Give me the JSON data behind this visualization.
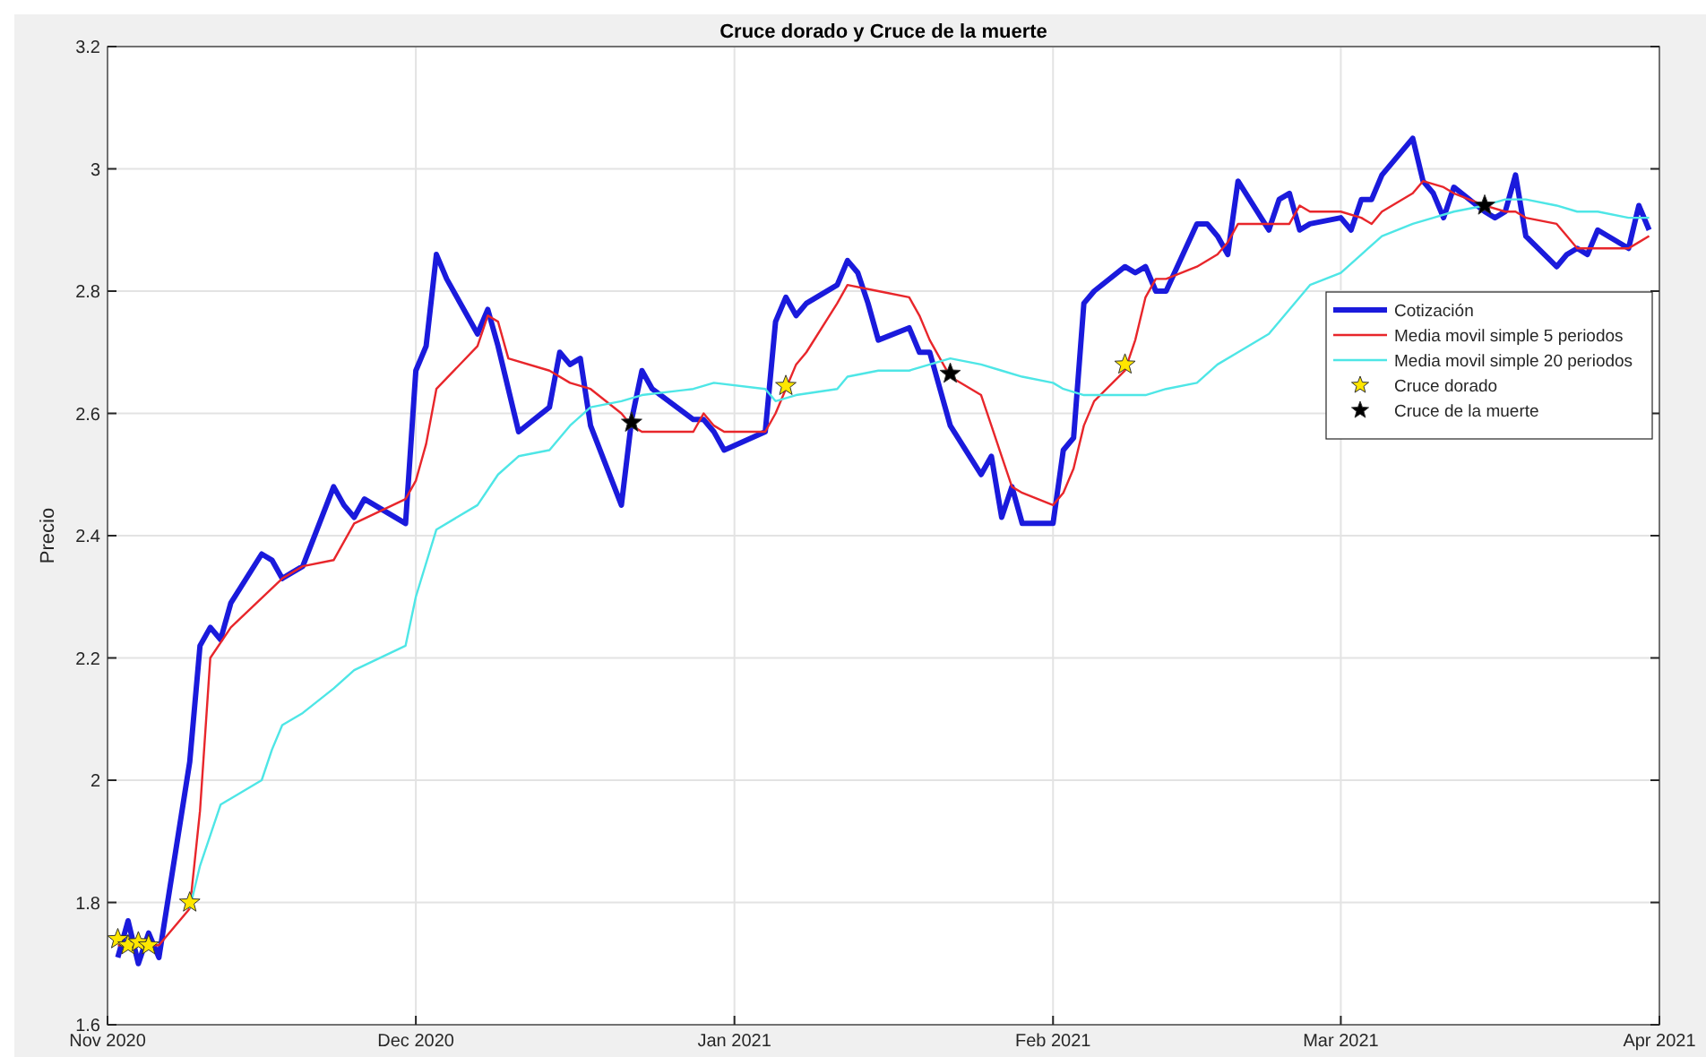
{
  "chart_data": {
    "type": "line",
    "title": "Cruce dorado y Cruce de la muerte",
    "ylabel": "Precio",
    "xlim": [
      "2020-11-01",
      "2021-04-01"
    ],
    "xticks": [
      {
        "value": "2020-11-01",
        "label": "Nov 2020"
      },
      {
        "value": "2020-12-01",
        "label": "Dec 2020"
      },
      {
        "value": "2021-01-01",
        "label": "Jan 2021"
      },
      {
        "value": "2021-02-01",
        "label": "Feb 2021"
      },
      {
        "value": "2021-03-01",
        "label": "Mar 2021"
      },
      {
        "value": "2021-04-01",
        "label": "Apr 2021"
      }
    ],
    "ylim": [
      1.6,
      3.2
    ],
    "yticks": [
      1.6,
      1.8,
      2,
      2.2,
      2.4,
      2.6,
      2.8,
      3,
      3.2
    ],
    "grid": true,
    "legend": "right",
    "series": [
      {
        "name": "Cotización",
        "color": "#1a1adc",
        "x": [
          "2020-11-02",
          "2020-11-03",
          "2020-11-04",
          "2020-11-05",
          "2020-11-06",
          "2020-11-09",
          "2020-11-10",
          "2020-11-11",
          "2020-11-12",
          "2020-11-13",
          "2020-11-16",
          "2020-11-17",
          "2020-11-18",
          "2020-11-19",
          "2020-11-20",
          "2020-11-23",
          "2020-11-24",
          "2020-11-25",
          "2020-11-26",
          "2020-11-30",
          "2020-12-01",
          "2020-12-02",
          "2020-12-03",
          "2020-12-04",
          "2020-12-07",
          "2020-12-08",
          "2020-12-09",
          "2020-12-10",
          "2020-12-11",
          "2020-12-14",
          "2020-12-15",
          "2020-12-16",
          "2020-12-17",
          "2020-12-18",
          "2020-12-21",
          "2020-12-22",
          "2020-12-23",
          "2020-12-24",
          "2020-12-28",
          "2020-12-29",
          "2020-12-30",
          "2020-12-31",
          "2021-01-04",
          "2021-01-05",
          "2021-01-06",
          "2021-01-07",
          "2021-01-08",
          "2021-01-11",
          "2021-01-12",
          "2021-01-13",
          "2021-01-14",
          "2021-01-15",
          "2021-01-18",
          "2021-01-19",
          "2021-01-20",
          "2021-01-21",
          "2021-01-22",
          "2021-01-25",
          "2021-01-26",
          "2021-01-27",
          "2021-01-28",
          "2021-01-29",
          "2021-02-01",
          "2021-02-02",
          "2021-02-03",
          "2021-02-04",
          "2021-02-05",
          "2021-02-08",
          "2021-02-09",
          "2021-02-10",
          "2021-02-11",
          "2021-02-12",
          "2021-02-15",
          "2021-02-16",
          "2021-02-17",
          "2021-02-18",
          "2021-02-19",
          "2021-02-22",
          "2021-02-23",
          "2021-02-24",
          "2021-02-25",
          "2021-02-26",
          "2021-03-01",
          "2021-03-02",
          "2021-03-03",
          "2021-03-04",
          "2021-03-05",
          "2021-03-08",
          "2021-03-09",
          "2021-03-10",
          "2021-03-11",
          "2021-03-12",
          "2021-03-15",
          "2021-03-16",
          "2021-03-17",
          "2021-03-18",
          "2021-03-19",
          "2021-03-22",
          "2021-03-23",
          "2021-03-24",
          "2021-03-25",
          "2021-03-26",
          "2021-03-29",
          "2021-03-30",
          "2021-03-31"
        ],
        "values": [
          1.71,
          1.77,
          1.7,
          1.75,
          1.71,
          2.03,
          2.22,
          2.25,
          2.23,
          2.29,
          2.37,
          2.36,
          2.33,
          2.34,
          2.35,
          2.48,
          2.45,
          2.43,
          2.46,
          2.42,
          2.67,
          2.71,
          2.86,
          2.82,
          2.73,
          2.77,
          2.71,
          2.64,
          2.57,
          2.61,
          2.7,
          2.68,
          2.69,
          2.58,
          2.45,
          2.59,
          2.67,
          2.64,
          2.59,
          2.59,
          2.57,
          2.54,
          2.57,
          2.75,
          2.79,
          2.76,
          2.78,
          2.81,
          2.85,
          2.83,
          2.78,
          2.72,
          2.74,
          2.7,
          2.7,
          2.64,
          2.58,
          2.5,
          2.53,
          2.43,
          2.48,
          2.42,
          2.42,
          2.54,
          2.56,
          2.78,
          2.8,
          2.84,
          2.83,
          2.84,
          2.8,
          2.8,
          2.91,
          2.91,
          2.89,
          2.86,
          2.98,
          2.9,
          2.95,
          2.96,
          2.9,
          2.91,
          2.92,
          2.9,
          2.95,
          2.95,
          2.99,
          3.05,
          2.98,
          2.96,
          2.92,
          2.97,
          2.93,
          2.92,
          2.93,
          2.99,
          2.89,
          2.84,
          2.86,
          2.87,
          2.86,
          2.9,
          2.87,
          2.94,
          2.9
        ]
      },
      {
        "name": "Media movil simple 5 periodos",
        "color": "#e8262b",
        "x": [
          "2020-11-02",
          "2020-11-06",
          "2020-11-09",
          "2020-11-10",
          "2020-11-11",
          "2020-11-13",
          "2020-11-18",
          "2020-11-20",
          "2020-11-23",
          "2020-11-25",
          "2020-11-30",
          "2020-12-01",
          "2020-12-02",
          "2020-12-03",
          "2020-12-07",
          "2020-12-08",
          "2020-12-09",
          "2020-12-10",
          "2020-12-14",
          "2020-12-16",
          "2020-12-18",
          "2020-12-21",
          "2020-12-22",
          "2020-12-23",
          "2020-12-28",
          "2020-12-29",
          "2020-12-30",
          "2020-12-31",
          "2021-01-04",
          "2021-01-05",
          "2021-01-06",
          "2021-01-07",
          "2021-01-08",
          "2021-01-11",
          "2021-01-12",
          "2021-01-15",
          "2021-01-18",
          "2021-01-19",
          "2021-01-20",
          "2021-01-21",
          "2021-01-22",
          "2021-01-25",
          "2021-01-26",
          "2021-01-27",
          "2021-01-28",
          "2021-01-29",
          "2021-02-01",
          "2021-02-02",
          "2021-02-03",
          "2021-02-04",
          "2021-02-05",
          "2021-02-08",
          "2021-02-09",
          "2021-02-10",
          "2021-02-11",
          "2021-02-12",
          "2021-02-15",
          "2021-02-17",
          "2021-02-18",
          "2021-02-19",
          "2021-02-22",
          "2021-02-24",
          "2021-02-25",
          "2021-02-26",
          "2021-03-01",
          "2021-03-03",
          "2021-03-04",
          "2021-03-05",
          "2021-03-08",
          "2021-03-09",
          "2021-03-11",
          "2021-03-12",
          "2021-03-15",
          "2021-03-17",
          "2021-03-18",
          "2021-03-19",
          "2021-03-22",
          "2021-03-23",
          "2021-03-24",
          "2021-03-25",
          "2021-03-29",
          "2021-03-30",
          "2021-03-31"
        ],
        "values": [
          1.73,
          1.73,
          1.79,
          1.95,
          2.2,
          2.25,
          2.33,
          2.35,
          2.36,
          2.42,
          2.46,
          2.49,
          2.55,
          2.64,
          2.71,
          2.76,
          2.75,
          2.69,
          2.67,
          2.65,
          2.64,
          2.6,
          2.58,
          2.57,
          2.57,
          2.6,
          2.58,
          2.57,
          2.57,
          2.6,
          2.64,
          2.68,
          2.7,
          2.78,
          2.81,
          2.8,
          2.79,
          2.76,
          2.72,
          2.69,
          2.66,
          2.63,
          2.58,
          2.53,
          2.48,
          2.47,
          2.45,
          2.47,
          2.51,
          2.58,
          2.62,
          2.67,
          2.72,
          2.79,
          2.82,
          2.82,
          2.84,
          2.86,
          2.88,
          2.91,
          2.91,
          2.91,
          2.94,
          2.93,
          2.93,
          2.92,
          2.91,
          2.93,
          2.96,
          2.98,
          2.97,
          2.96,
          2.94,
          2.93,
          2.93,
          2.92,
          2.91,
          2.89,
          2.87,
          2.87,
          2.87,
          2.88,
          2.89
        ]
      },
      {
        "name": "Media movil simple 20 periodos",
        "color": "#4ee6e6",
        "x": [
          "2020-11-09",
          "2020-11-10",
          "2020-11-12",
          "2020-11-16",
          "2020-11-17",
          "2020-11-18",
          "2020-11-20",
          "2020-11-23",
          "2020-11-25",
          "2020-11-30",
          "2020-12-01",
          "2020-12-03",
          "2020-12-07",
          "2020-12-09",
          "2020-12-11",
          "2020-12-14",
          "2020-12-16",
          "2020-12-18",
          "2020-12-21",
          "2020-12-23",
          "2020-12-28",
          "2020-12-30",
          "2021-01-04",
          "2021-01-05",
          "2021-01-07",
          "2021-01-11",
          "2021-01-12",
          "2021-01-15",
          "2021-01-18",
          "2021-01-20",
          "2021-01-22",
          "2021-01-25",
          "2021-01-27",
          "2021-01-29",
          "2021-02-01",
          "2021-02-02",
          "2021-02-04",
          "2021-02-08",
          "2021-02-10",
          "2021-02-12",
          "2021-02-15",
          "2021-02-17",
          "2021-02-19",
          "2021-02-22",
          "2021-02-24",
          "2021-02-26",
          "2021-03-01",
          "2021-03-03",
          "2021-03-05",
          "2021-03-08",
          "2021-03-10",
          "2021-03-12",
          "2021-03-15",
          "2021-03-17",
          "2021-03-19",
          "2021-03-22",
          "2021-03-24",
          "2021-03-26",
          "2021-03-29",
          "2021-03-31"
        ],
        "values": [
          1.79,
          1.86,
          1.96,
          2.0,
          2.05,
          2.09,
          2.11,
          2.15,
          2.18,
          2.22,
          2.3,
          2.41,
          2.45,
          2.5,
          2.53,
          2.54,
          2.58,
          2.61,
          2.62,
          2.63,
          2.64,
          2.65,
          2.64,
          2.62,
          2.63,
          2.64,
          2.66,
          2.67,
          2.67,
          2.68,
          2.69,
          2.68,
          2.67,
          2.66,
          2.65,
          2.64,
          2.63,
          2.63,
          2.63,
          2.64,
          2.65,
          2.68,
          2.7,
          2.73,
          2.77,
          2.81,
          2.83,
          2.86,
          2.89,
          2.91,
          2.92,
          2.93,
          2.94,
          2.95,
          2.95,
          2.94,
          2.93,
          2.93,
          2.92,
          2.92
        ]
      },
      {
        "name": "Cruce dorado",
        "type": "scatter",
        "marker": "star",
        "color": "#ffe600",
        "x": [
          "2020-11-02",
          "2020-11-03",
          "2020-11-04",
          "2020-11-05",
          "2020-11-09",
          "2021-01-06",
          "2021-02-08"
        ],
        "values": [
          1.74,
          1.73,
          1.735,
          1.73,
          1.8,
          2.645,
          2.68
        ]
      },
      {
        "name": "Cruce de la muerte",
        "type": "scatter",
        "marker": "star",
        "color": "#000000",
        "x": [
          "2020-12-22",
          "2021-01-22",
          "2021-03-15"
        ],
        "values": [
          2.585,
          2.665,
          2.94
        ]
      }
    ]
  }
}
